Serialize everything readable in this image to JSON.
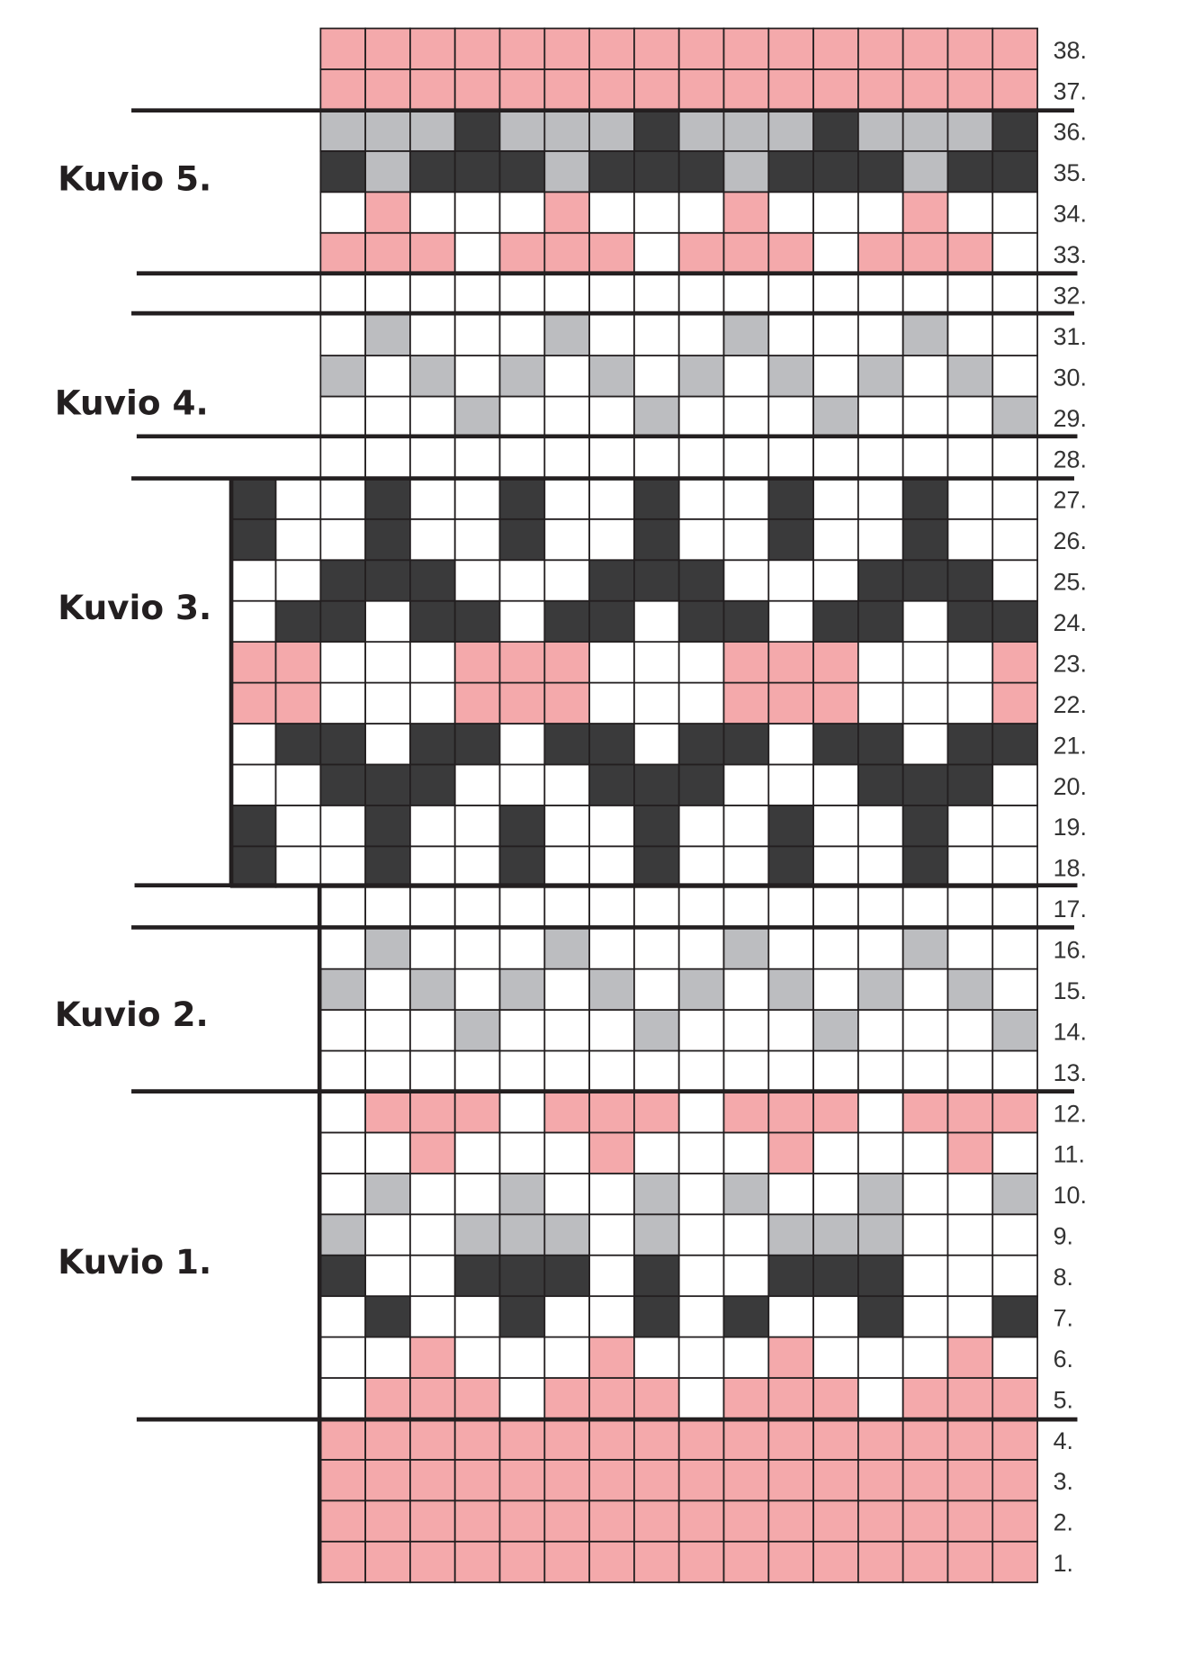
{
  "sections": [
    {
      "label": "Kuvio 1."
    },
    {
      "label": "Kuvio 2."
    },
    {
      "label": "Kuvio 3."
    },
    {
      "label": "Kuvio 4."
    },
    {
      "label": "Kuvio 5."
    }
  ],
  "palette": {
    "P": "#f4a9ab",
    "W": "#ffffff",
    "G": "#bcbdc0",
    "D": "#3a3a3b"
  },
  "rows": [
    {
      "label": "1.",
      "cells": "PPPPPPPPPPPPPPPP"
    },
    {
      "label": "2.",
      "cells": "PPPPPPPPPPPPPPPP"
    },
    {
      "label": "3.",
      "cells": "PPPPPPPPPPPPPPPP"
    },
    {
      "label": "4.",
      "cells": "PPPPPPPPPPPPPPPP"
    },
    {
      "label": "5.",
      "cells": "WPPPWPPPWPPPWPPP"
    },
    {
      "label": "6.",
      "cells": "WWPWWWPWWWPWWWPW"
    },
    {
      "label": "7.",
      "cells": "WDWWDWWDWDWWDWWD"
    },
    {
      "label": "8.",
      "cells": "DWWDDDWDWWDDDWWW"
    },
    {
      "label": "9.",
      "cells": "GWWGGGWGWWGGGWWW"
    },
    {
      "label": "10.",
      "cells": "WGWWGWWGWGWWGWWG"
    },
    {
      "label": "11.",
      "cells": "WWPWWWPWWWPWWWPW"
    },
    {
      "label": "12.",
      "cells": "WPPPWPPPWPPPWPPP"
    },
    {
      "label": "13.",
      "cells": "WWWWWWWWWWWWWWWW"
    },
    {
      "label": "14.",
      "cells": "WWWGWWWGWWWGWWWG"
    },
    {
      "label": "15.",
      "cells": "GWGWGWGWGWGWGWGW"
    },
    {
      "label": "16.",
      "cells": "WGWWWGWWWGWWWGWW"
    },
    {
      "label": "17.",
      "cells": "WWWWWWWWWWWWWWWW"
    },
    {
      "label": "18.",
      "cells": "DWWDWWDWWDWWDWWDWW"
    },
    {
      "label": "19.",
      "cells": "DWWDWWDWWDWWDWWDWW"
    },
    {
      "label": "20.",
      "cells": "WWDDDWWWDDDWWWDDDW"
    },
    {
      "label": "21.",
      "cells": "WDDWDDWDDWDDWDDWDD"
    },
    {
      "label": "22.",
      "cells": "PPWWWPPPWWWPPPWWWP"
    },
    {
      "label": "23.",
      "cells": "PPWWWPPPWWWPPPWWWP"
    },
    {
      "label": "24.",
      "cells": "WDDWDDWDDWDDWDDWDD"
    },
    {
      "label": "25.",
      "cells": "WWDDDWWWDDDWWWDDDW"
    },
    {
      "label": "26.",
      "cells": "DWWDWWDWWDWWDWWDWW"
    },
    {
      "label": "27.",
      "cells": "DWWDWWDWWDWWDWWDWW"
    },
    {
      "label": "28.",
      "cells": "WWWWWWWWWWWWWWWW"
    },
    {
      "label": "29.",
      "cells": "WWWGWWWGWWWGWWWG"
    },
    {
      "label": "30.",
      "cells": "GWGWGWGWGWGWGWGW"
    },
    {
      "label": "31.",
      "cells": "WGWWWGWWWGWWWGWW"
    },
    {
      "label": "32.",
      "cells": "WWWWWWWWWWWWWWWW"
    },
    {
      "label": "33.",
      "cells": "PPPWPPPWPPPWPPPW"
    },
    {
      "label": "34.",
      "cells": "WPWWWPWWWPWWWPWW"
    },
    {
      "label": "35.",
      "cells": "DGDDDGDDDGDDDGDD"
    },
    {
      "label": "36.",
      "cells": "GGGDGGGDGGGDGGGD"
    },
    {
      "label": "37.",
      "cells": "PPPPPPPPPPPPPPPP"
    },
    {
      "label": "38.",
      "cells": "PPPPPPPPPPPPPPPP"
    }
  ]
}
